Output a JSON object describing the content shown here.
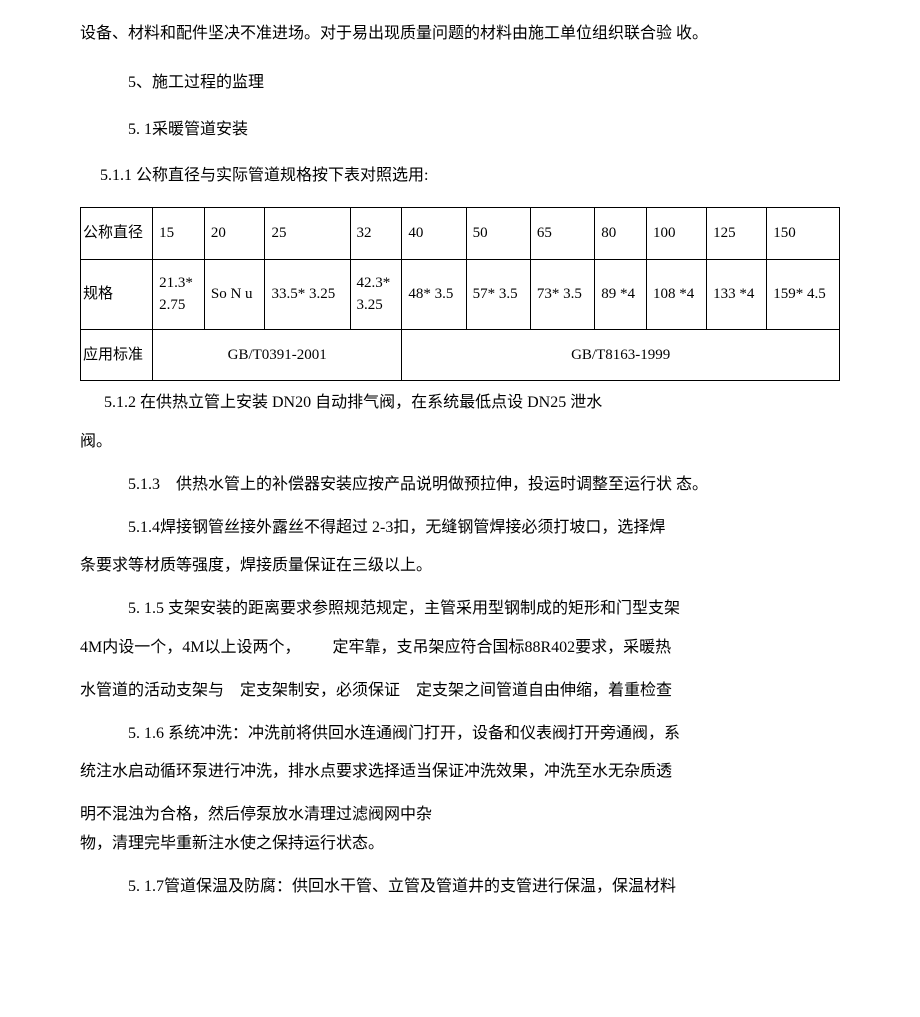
{
  "paragraphs": {
    "p0": "设备、材料和配件坚决不准进场。对于易出现质量问题的材料由施工单位组织联合验 收。",
    "p1": "5、施工过程的监理",
    "p2": "5. 1采暖管道安装",
    "p3": "5.1.1 公称直径与实际管道规格按下表对照选用:",
    "p4": "5.1.2 在供热立管上安装 DN20 自动排气阀，在系统最低点设 DN25 泄水",
    "p4b": "阀。",
    "p5": "5.1.3 供热水管上的补偿器安装应按产品说明做预拉伸，投运时调整至运行状 态。",
    "p6a": "5.1.4焊接钢管丝接外露丝不得超过 2-3扣，无缝钢管焊接必须打坡口，选择焊",
    "p6b": "条要求等材质等强度，焊接质量保证在三级以上。",
    "p7a": "5. 1.5 支架安装的距离要求参照规范规定，主管采用型钢制成的矩形和门型支架",
    "p7b": "4M内设一个，4M以上设两个，  定牢靠，支吊架应符合国标88R402要求，采暖热",
    "p7c": "水管道的活动支架与 定支架制安，必须保证 定支架之间管道自由伸缩，着重检查",
    "p8a": "5. 1.6 系统冲洗：冲洗前将供回水连通阀门打开，设备和仪表阀打开旁通阀，系",
    "p8b": "统注水启动循环泵进行冲洗，排水点要求选择适当保证冲洗效果，冲洗至水无杂质透",
    "p8c": "明不混浊为合格，然后停泵放水清理过滤阀网中杂",
    "p8d": "物，清理完毕重新注水使之保持运行状态。",
    "p9": "5. 1.7管道保温及防腐：供回水干管、立管及管道井的支管进行保温，保温材料"
  },
  "table": {
    "rows": [
      {
        "header": "公称直径",
        "cells": [
          "15",
          "20",
          "25",
          "32",
          "40",
          "50",
          "65",
          "80",
          "100",
          "125",
          "150"
        ]
      },
      {
        "header": "规格",
        "cells": [
          "21.3*\n2.75",
          "So N u",
          "33.5* 3.25",
          "42.3*\n3.25",
          "48* 3.5",
          "57* 3.5",
          "73* 3.5",
          "89 *4",
          "108 *4",
          "133 *4",
          "159* 4.5"
        ]
      }
    ],
    "standard_row": {
      "header": "应用标准",
      "cell1": "GB/T0391-2001",
      "cell2": "GB/T8163-1999"
    }
  }
}
